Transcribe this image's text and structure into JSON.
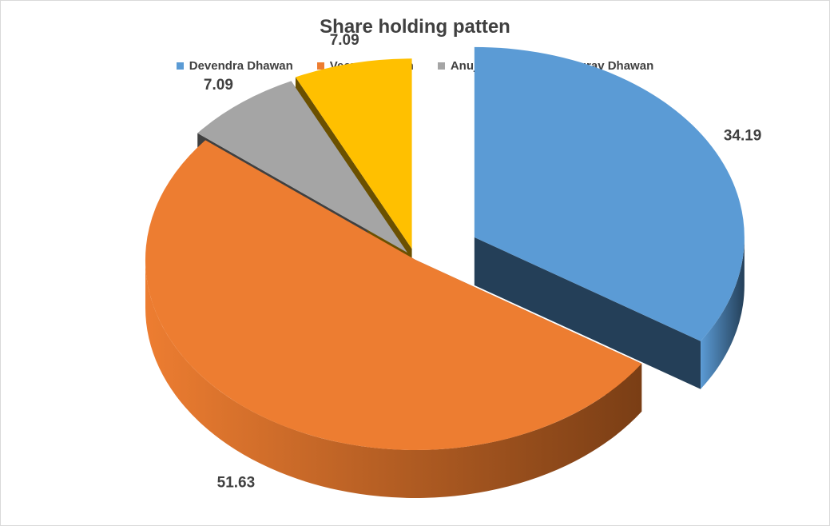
{
  "chart_data": {
    "type": "pie",
    "title": "Share holding patten",
    "categories": [
      "Devendra Dhawan",
      "Veena Dhawan",
      "Anuj Dhawan",
      "Gaurav Dhawan"
    ],
    "values": [
      34.19,
      51.63,
      7.09,
      7.09
    ],
    "data_labels": [
      "34.19",
      "51.63",
      "7.09",
      "7.09"
    ],
    "colors": [
      "#5b9bd5",
      "#ed7d31",
      "#a5a5a5",
      "#ffc000"
    ],
    "side_colors": [
      "#243f58",
      "#7a3e15",
      "#404040",
      "#6b5000"
    ],
    "legend_position": "top",
    "style": "3d-exploded"
  }
}
